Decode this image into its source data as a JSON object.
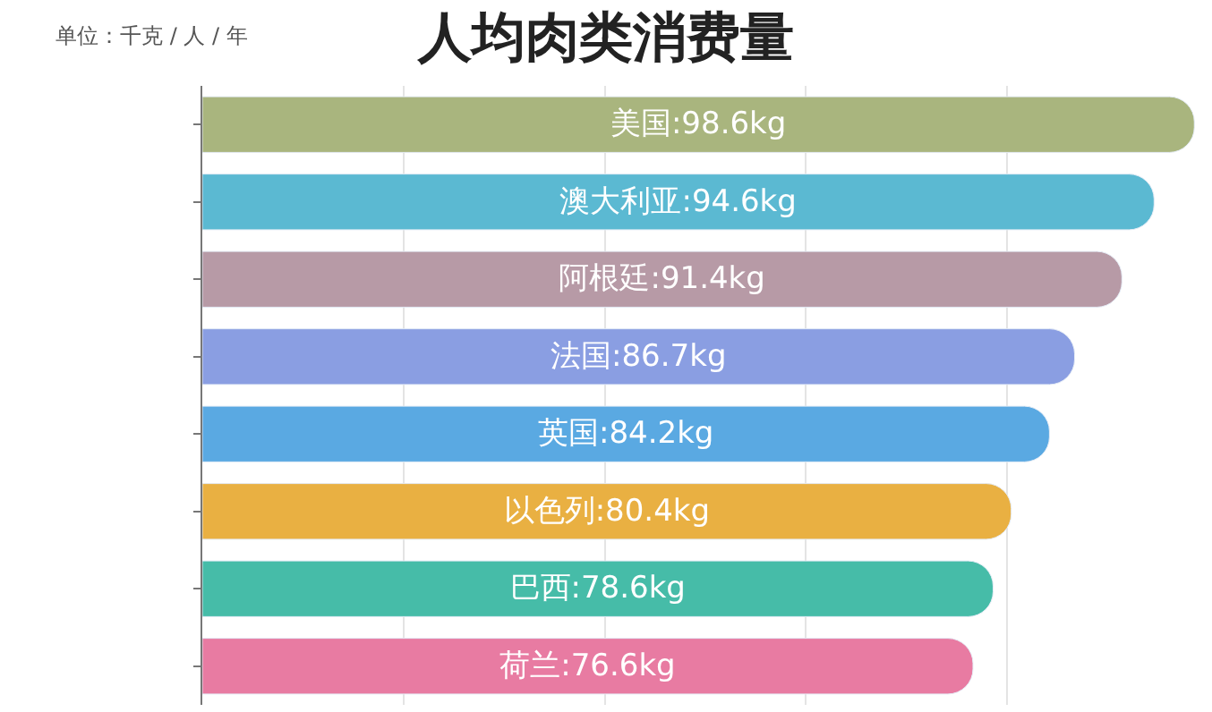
{
  "chart_data": {
    "type": "bar",
    "orientation": "horizontal",
    "title": "人均肉类消费量",
    "subtitle": "单位：千克 / 人 / 年",
    "categories": [
      null,
      null,
      null,
      null,
      null,
      null,
      null,
      null
    ],
    "values": [
      98.6,
      94.6,
      91.4,
      86.7,
      84.2,
      80.4,
      78.6,
      76.6
    ],
    "value_labels": [
      "美国:98.6kg",
      "澳大利亚:94.6kg",
      "阿根廷:91.4kg",
      "法国:86.7kg",
      "英国:84.2kg",
      "以色列:80.4kg",
      "巴西:78.6kg",
      "荷兰:76.6kg"
    ],
    "colors": [
      "#a9b57e",
      "#5bb9d2",
      "#b79aa6",
      "#8a9ee2",
      "#5aa9e2",
      "#e9b042",
      "#46bca8",
      "#e87ba2"
    ],
    "xlim": [
      0,
      100
    ],
    "xticks": [
      {
        "value": 0,
        "label": null
      },
      {
        "value": 20,
        "label": null
      },
      {
        "value": 40,
        "label": null
      },
      {
        "value": 60,
        "label": null
      },
      {
        "value": 80,
        "label": null
      },
      {
        "value": 100,
        "label": null
      }
    ],
    "grid": "x",
    "legend": false
  }
}
